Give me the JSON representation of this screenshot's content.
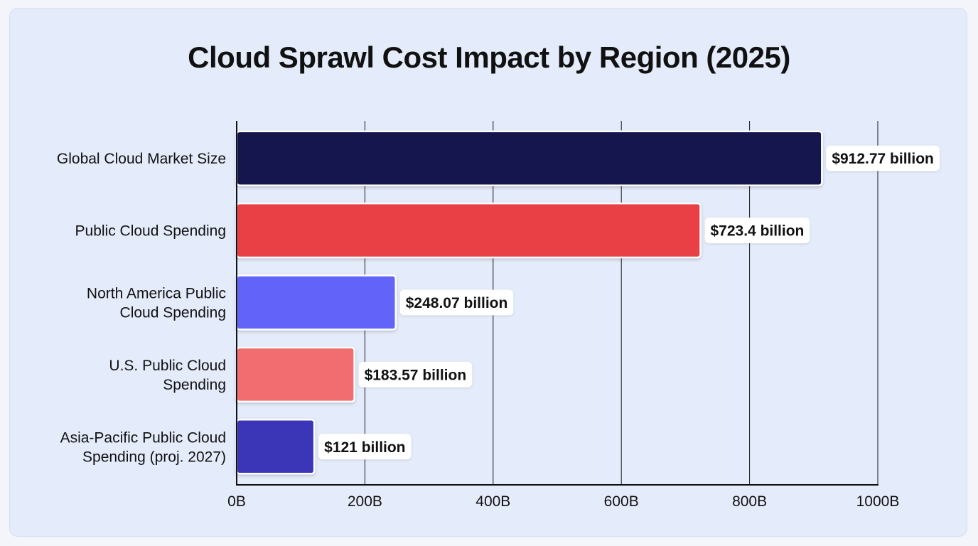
{
  "chart_data": {
    "type": "bar",
    "orientation": "horizontal",
    "title": "Cloud Sprawl Cost Impact by Region (2025)",
    "categories": [
      [
        "Global Cloud Market Size"
      ],
      [
        "Public Cloud Spending"
      ],
      [
        "North America Public",
        "Cloud Spending"
      ],
      [
        "U.S. Public Cloud",
        "Spending"
      ],
      [
        "Asia-Pacific Public Cloud",
        "Spending (proj. 2027)"
      ]
    ],
    "values": [
      912.77,
      723.4,
      248.07,
      183.57,
      121
    ],
    "value_labels": [
      "$912.77 billion",
      "$723.4 billion",
      "$248.07 billion",
      "$183.57 billion",
      "$121 billion"
    ],
    "colors": [
      "#15184f",
      "#e84145",
      "#6263f8",
      "#f26d6f",
      "#3b34b7"
    ],
    "xlim": [
      0,
      1000
    ],
    "xticks": [
      0,
      200,
      400,
      600,
      800,
      1000
    ],
    "xtick_labels": [
      "0B",
      "200B",
      "400B",
      "600B",
      "800B",
      "1000B"
    ],
    "grid": true,
    "legend": false
  }
}
